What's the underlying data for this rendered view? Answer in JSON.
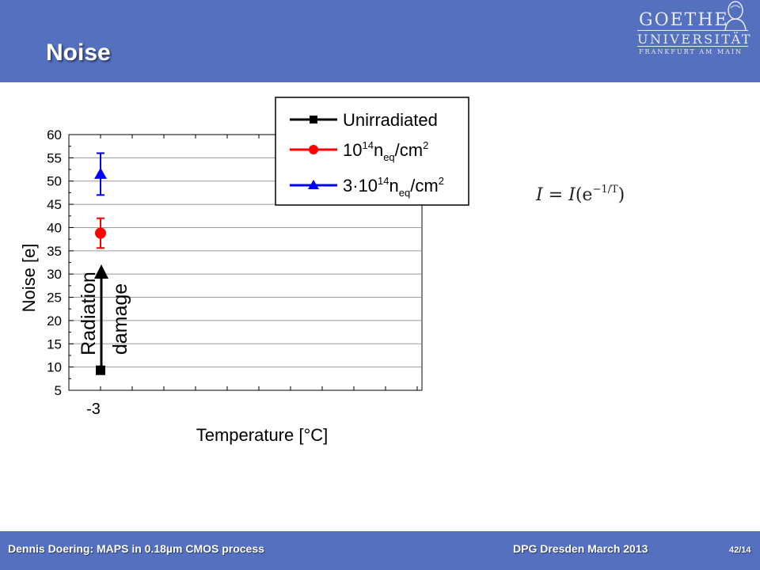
{
  "header": {
    "title": "Noise",
    "logo": {
      "line1": "GOETHE",
      "line2": "UNIVERSITÄT",
      "line3": "FRANKFURT AM MAIN"
    }
  },
  "chart_data": {
    "type": "scatter",
    "xlabel": "Temperature [°C]",
    "ylabel": "Noise [e]",
    "ylim": [
      5,
      60
    ],
    "yticks": [
      5,
      10,
      15,
      20,
      25,
      30,
      35,
      40,
      45,
      50,
      55,
      60
    ],
    "x_tick_labels": [
      "-3"
    ],
    "grid": true,
    "legend_position": "top-right",
    "series": [
      {
        "name": "Unirradiated",
        "marker": "square",
        "color": "#000000",
        "points": [
          {
            "x": -3,
            "y": 9.3,
            "err": 0.6
          }
        ]
      },
      {
        "name": "10^14 n_eq/cm^2",
        "marker": "circle",
        "color": "#ff0000",
        "points": [
          {
            "x": -3,
            "y": 38.8,
            "err": 3.2
          }
        ]
      },
      {
        "name": "3·10^14 n_eq/cm^2",
        "marker": "triangle",
        "color": "#0000ff",
        "points": [
          {
            "x": -3,
            "y": 51.5,
            "err": 4.5
          }
        ]
      }
    ],
    "legend_entries": [
      {
        "base": "Unirradiated"
      },
      {
        "pre": "10",
        "sup": "14",
        "mid": "n",
        "sub": "eq",
        "post": "/cm",
        "sup2": "2"
      },
      {
        "pre": "3·10",
        "sup": "14",
        "mid": "n",
        "sub": "eq",
        "post": "/cm",
        "sup2": "2"
      }
    ],
    "annotation": {
      "line1": "Radiation",
      "line2": "damage"
    }
  },
  "formula": {
    "lhs": "I",
    "eq": " = ",
    "rhs_I": "I",
    "open": "(e",
    "sup": "−1/T",
    "close": ")"
  },
  "footer": {
    "left": "Dennis Doering: MAPS in 0.18µm CMOS process",
    "center": "DPG Dresden March 2013",
    "page": "42/14"
  }
}
